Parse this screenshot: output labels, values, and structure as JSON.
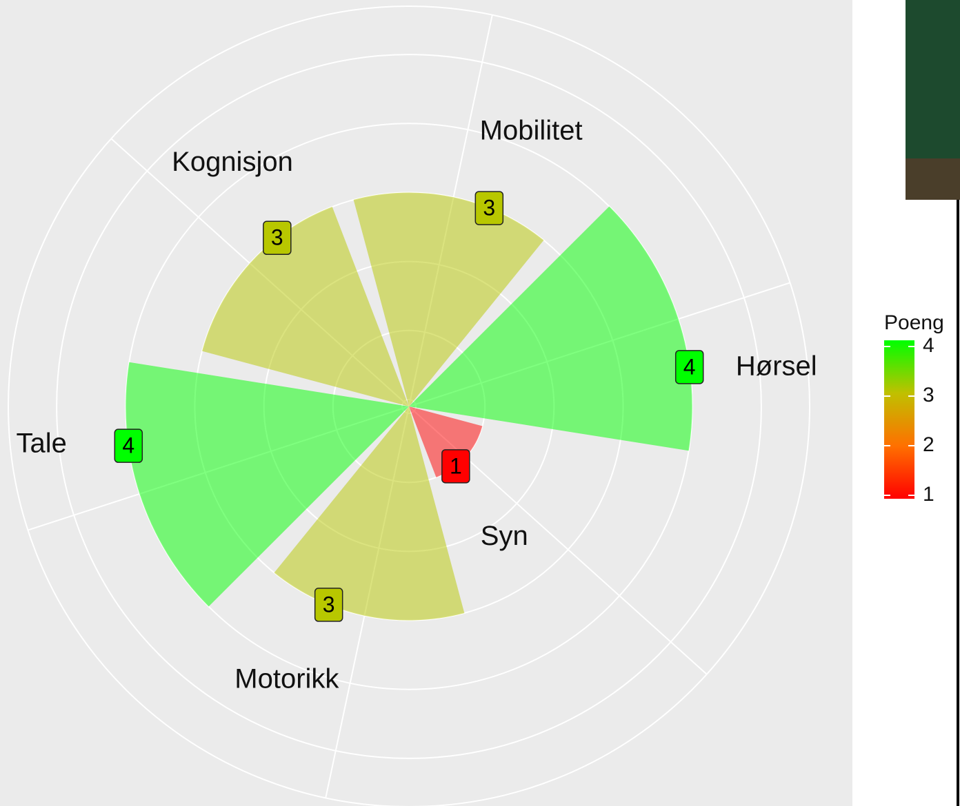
{
  "chart_data": {
    "type": "polar-bar",
    "categories": [
      "Hørsel",
      "Mobilitet",
      "Kognisjon",
      "Tale",
      "Motorikk",
      "Syn"
    ],
    "values": [
      4,
      3,
      3,
      4,
      3,
      1
    ],
    "colors": [
      "#00ff00",
      "#b8c700",
      "#b8c700",
      "#00ff00",
      "#b8c700",
      "#ff0000"
    ],
    "ylim": [
      -0.1,
      5.7
    ],
    "yticks": [
      0,
      1,
      2,
      3,
      4,
      5
    ],
    "grid": true,
    "legend": {
      "title": "Poeng",
      "ticks": [
        1,
        2,
        3,
        4
      ],
      "colors": [
        "#ff0000",
        "#ff7000",
        "#c0c000",
        "#00ff00"
      ]
    }
  }
}
